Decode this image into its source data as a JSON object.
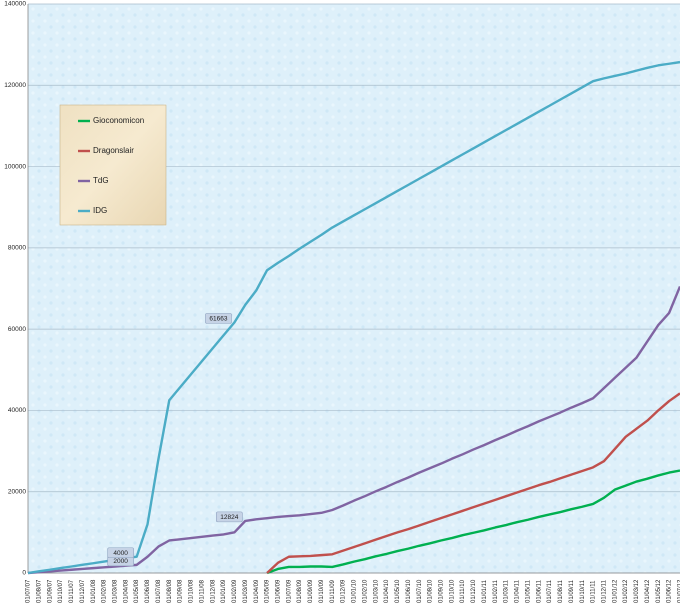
{
  "chart_data": {
    "type": "line",
    "categories": [
      "01/07/07",
      "01/08/07",
      "01/09/07",
      "01/10/07",
      "01/11/07",
      "01/12/07",
      "01/01/08",
      "01/02/08",
      "01/03/08",
      "01/04/08",
      "01/05/08",
      "01/06/08",
      "01/07/08",
      "01/08/08",
      "01/09/08",
      "01/10/08",
      "01/11/08",
      "01/12/08",
      "01/01/09",
      "01/02/09",
      "01/03/09",
      "01/04/09",
      "01/05/09",
      "01/06/09",
      "01/07/09",
      "01/08/09",
      "01/09/09",
      "01/10/09",
      "01/11/09",
      "01/12/09",
      "01/01/10",
      "01/02/10",
      "01/03/10",
      "01/04/10",
      "01/05/10",
      "01/06/10",
      "01/07/10",
      "01/08/10",
      "01/09/10",
      "01/10/10",
      "01/11/10",
      "01/12/10",
      "01/01/11",
      "01/02/11",
      "01/03/11",
      "01/04/11",
      "01/05/11",
      "01/06/11",
      "01/07/11",
      "01/08/11",
      "01/09/11",
      "01/10/11",
      "01/11/11",
      "01/12/11",
      "01/01/12",
      "01/02/12",
      "01/03/12",
      "01/04/12",
      "01/05/12",
      "01/06/12",
      "01/07/12"
    ],
    "series": [
      {
        "name": "Gioconomicon",
        "color": "#00b050",
        "values": [
          null,
          null,
          null,
          null,
          null,
          null,
          null,
          null,
          null,
          null,
          null,
          null,
          null,
          null,
          null,
          null,
          null,
          null,
          null,
          null,
          null,
          null,
          0,
          1000,
          1500,
          1500,
          1600,
          1600,
          1500,
          2100,
          2800,
          3400,
          4100,
          4700,
          5400,
          6000,
          6700,
          7300,
          8000,
          8600,
          9300,
          9900,
          10500,
          11200,
          11800,
          12500,
          13100,
          13800,
          14400,
          15000,
          15700,
          16300,
          17000,
          18500,
          20500,
          21500,
          22500,
          23200,
          24000,
          24700,
          25200
        ]
      },
      {
        "name": "Dragonslair",
        "color": "#c0504d",
        "values": [
          null,
          null,
          null,
          null,
          null,
          null,
          null,
          null,
          null,
          null,
          null,
          null,
          null,
          null,
          null,
          null,
          null,
          null,
          null,
          null,
          null,
          null,
          0,
          2500,
          4000,
          4100,
          4200,
          4400,
          4600,
          5500,
          6400,
          7300,
          8200,
          9100,
          10000,
          10800,
          11700,
          12600,
          13500,
          14400,
          15300,
          16200,
          17100,
          18000,
          18900,
          19800,
          20700,
          21600,
          22400,
          23300,
          24200,
          25100,
          26000,
          27500,
          30500,
          33500,
          35500,
          37500,
          40000,
          42300,
          44200
        ]
      },
      {
        "name": "TdG",
        "color": "#8064a2",
        "values": [
          0,
          200,
          400,
          600,
          800,
          1000,
          1200,
          1400,
          1600,
          1800,
          2000,
          4000,
          6500,
          8000,
          8300,
          8600,
          8900,
          9200,
          9500,
          10000,
          12824,
          13200,
          13500,
          13800,
          14000,
          14200,
          14500,
          14800,
          15500,
          16600,
          17800,
          18900,
          20100,
          21200,
          22400,
          23500,
          24700,
          25800,
          26900,
          28100,
          29200,
          30400,
          31500,
          32700,
          33800,
          35000,
          36100,
          37300,
          38400,
          39500,
          40700,
          41800,
          43000,
          45500,
          48000,
          50500,
          53000,
          57000,
          61000,
          64000,
          70500
        ],
        "value_labels": [
          null,
          null,
          null,
          null,
          null,
          null,
          null,
          null,
          null,
          null,
          "2000",
          null,
          null,
          null,
          null,
          null,
          null,
          null,
          null,
          null,
          "12824",
          null,
          null,
          null,
          null,
          null,
          null,
          null,
          null,
          null,
          null,
          null,
          null,
          null,
          null,
          null,
          null,
          null,
          null,
          null,
          null,
          null,
          null,
          null,
          null,
          null,
          null,
          null,
          null,
          null,
          null,
          null,
          null,
          null,
          null,
          null,
          null,
          null,
          null,
          null,
          null
        ]
      },
      {
        "name": "IDG",
        "color": "#4bacc6",
        "values": [
          0,
          400,
          800,
          1200,
          1600,
          2000,
          2400,
          2800,
          3200,
          3600,
          4000,
          12000,
          28000,
          42500,
          45700,
          48900,
          52100,
          55300,
          58500,
          61663,
          66000,
          69500,
          74500,
          76300,
          78000,
          79800,
          81500,
          83200,
          85000,
          86500,
          88000,
          89500,
          91000,
          92500,
          94000,
          95500,
          97000,
          98500,
          100000,
          101500,
          103000,
          104500,
          106000,
          107500,
          109000,
          110500,
          112000,
          113500,
          115000,
          116500,
          118000,
          119500,
          121000,
          121700,
          122300,
          122900,
          123600,
          124300,
          124900,
          125300,
          125700
        ],
        "value_labels": [
          null,
          null,
          null,
          null,
          null,
          null,
          null,
          null,
          null,
          null,
          "4000",
          null,
          null,
          null,
          null,
          null,
          null,
          null,
          null,
          "61663",
          null,
          null,
          null,
          null,
          null,
          null,
          null,
          null,
          null,
          null,
          null,
          null,
          null,
          null,
          null,
          null,
          null,
          null,
          null,
          null,
          null,
          null,
          null,
          null,
          null,
          null,
          null,
          null,
          null,
          null,
          null,
          null,
          null,
          null,
          null,
          null,
          null,
          null,
          null,
          null,
          null
        ]
      }
    ],
    "ylim": [
      0,
      140000
    ],
    "yticks": [
      0,
      20000,
      40000,
      60000,
      80000,
      100000,
      120000,
      140000
    ],
    "grid": true,
    "legend": "upper left"
  }
}
